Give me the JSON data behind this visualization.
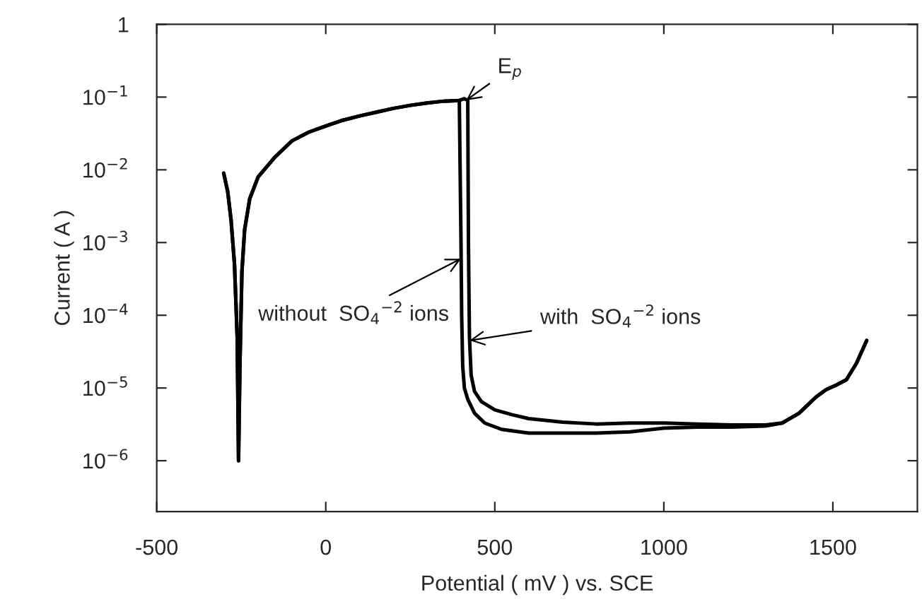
{
  "chart_data": {
    "type": "line",
    "xlabel": "Potential ( mV ) vs. SCE",
    "ylabel": "Current ( A )",
    "log": "y",
    "grid": false,
    "legend": false,
    "marker": "none",
    "line_style": "solid",
    "xlim": [
      -500,
      1750
    ],
    "xticks": [
      -500,
      0,
      500,
      1000,
      1500
    ],
    "ylim": [
      2e-07,
      1
    ],
    "yticks": [
      {
        "value": 1e-06,
        "label": "10$^{−6}$"
      },
      {
        "value": 1e-05,
        "label": "10$^{−5}$"
      },
      {
        "value": 0.0001,
        "label": "10$^{−4}$"
      },
      {
        "value": 0.001,
        "label": "10$^{−3}$"
      },
      {
        "value": 0.01,
        "label": "10$^{−2}$"
      },
      {
        "value": 0.1,
        "label": "10$^{−1}$"
      },
      1
    ],
    "series": [
      {
        "color": "#000000",
        "x": [
          -302,
          -290,
          -280,
          -270,
          -262,
          -258,
          -254,
          -248,
          -240,
          -225,
          -200,
          -150,
          -100,
          -50,
          0,
          50,
          100,
          150,
          200,
          250,
          300,
          350,
          395,
          400,
          402,
          405,
          410,
          420,
          440,
          470,
          520,
          600,
          700,
          800,
          900,
          1000,
          1100,
          1200,
          1300,
          1350,
          1400,
          1450,
          1480,
          1510,
          1540,
          1570,
          1600
        ],
        "values": [
          0.009,
          0.005,
          0.002,
          0.0005,
          5e-05,
          1e-06,
          2e-05,
          0.0004,
          0.0015,
          0.004,
          0.008,
          0.015,
          0.025,
          0.033,
          0.04,
          0.048,
          0.055,
          0.062,
          0.07,
          0.077,
          0.083,
          0.088,
          0.09,
          0.001,
          0.0001,
          2e-05,
          1e-05,
          7e-06,
          4.5e-06,
          3.3e-06,
          2.7e-06,
          2.4e-06,
          2.4e-06,
          2.4e-06,
          2.5e-06,
          2.8e-06,
          2.9e-06,
          2.9e-06,
          3e-06,
          3.3e-06,
          4.5e-06,
          7.5e-06,
          9.5e-06,
          1.1e-05,
          1.3e-05,
          2.2e-05,
          4.5e-05
        ]
      },
      {
        "color": "#000000",
        "x": [
          -302,
          -290,
          -280,
          -270,
          -262,
          -258,
          -254,
          -248,
          -240,
          -225,
          -200,
          -150,
          -100,
          -50,
          0,
          50,
          100,
          150,
          200,
          250,
          300,
          350,
          395,
          410,
          420,
          422,
          425,
          430,
          440,
          460,
          500,
          550,
          600,
          700,
          800,
          900,
          1000,
          1100,
          1200,
          1300,
          1350,
          1400,
          1450,
          1480,
          1510,
          1540,
          1570,
          1600
        ],
        "values": [
          0.009,
          0.005,
          0.002,
          0.0005,
          5e-05,
          1e-06,
          2e-05,
          0.0004,
          0.0015,
          0.004,
          0.008,
          0.015,
          0.025,
          0.033,
          0.04,
          0.048,
          0.055,
          0.062,
          0.07,
          0.077,
          0.083,
          0.088,
          0.09,
          0.095,
          0.09,
          0.001,
          5e-05,
          1.5e-05,
          9e-06,
          6.5e-06,
          5e-06,
          4.3e-06,
          3.8e-06,
          3.4e-06,
          3.2e-06,
          3.3e-06,
          3.3e-06,
          3.2e-06,
          3.1e-06,
          3.1e-06,
          3.3e-06,
          4.5e-06,
          7.5e-06,
          9.5e-06,
          1.1e-05,
          1.3e-05,
          2.2e-05,
          4.5e-05
        ]
      }
    ],
    "annotations": [
      {
        "text": "E$_{p}$",
        "x": 415,
        "y": 0.09
      },
      {
        "text": "without  SO$_{4}$$^{−2}$ ions",
        "x": 400,
        "y": 0.0006
      },
      {
        "text": "with  SO$_{4}$$^{−2}$ ions",
        "x": 425,
        "y": 4.5e-05
      }
    ]
  }
}
